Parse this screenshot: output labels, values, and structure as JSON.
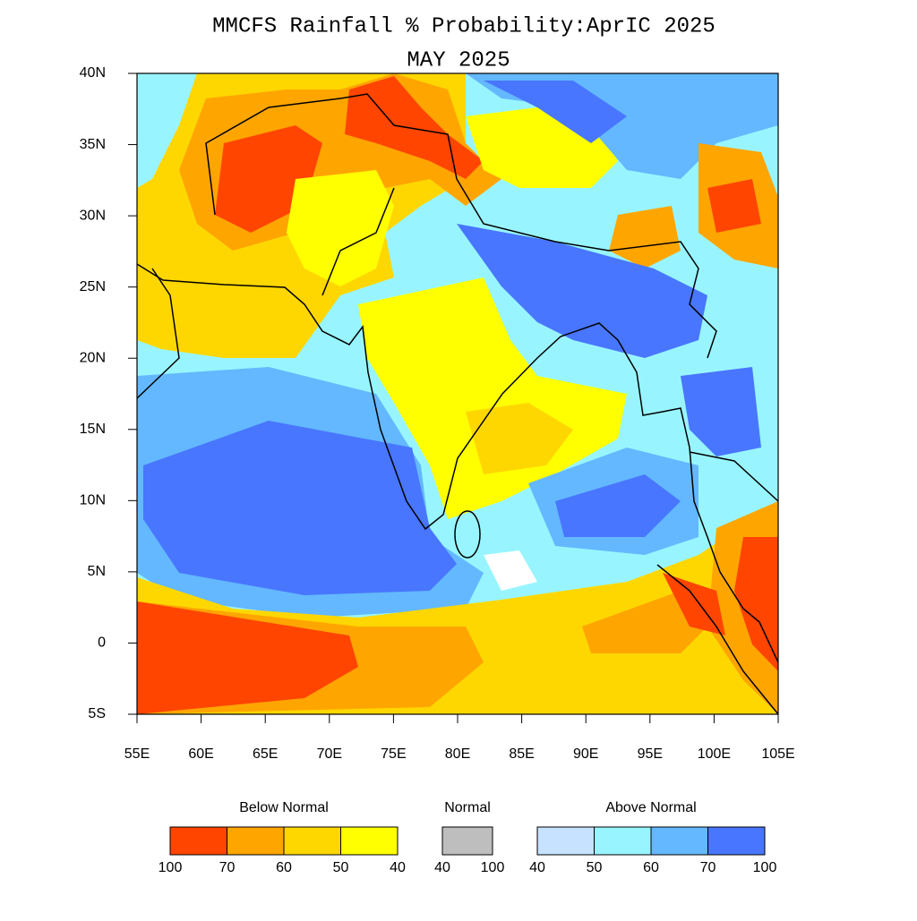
{
  "title": "MMCFS Rainfall % Probability:AprIC 2025",
  "subtitle": "MAY 2025",
  "map": {
    "lon_labels": [
      "55E",
      "60E",
      "65E",
      "70E",
      "75E",
      "80E",
      "85E",
      "90E",
      "95E",
      "100E",
      "105E"
    ],
    "lat_labels": [
      "40N",
      "35N",
      "30N",
      "25N",
      "20N",
      "15N",
      "10N",
      "5N",
      "0",
      "5S"
    ]
  },
  "legend": {
    "groups": [
      {
        "name": "Below Normal",
        "colors": [
          "#ff4500",
          "#ffa500",
          "#ffd700",
          "#ffff00"
        ],
        "labels": [
          "100",
          "70",
          "60",
          "50",
          "40"
        ]
      },
      {
        "name": "Normal",
        "colors": [
          "#bebebe"
        ],
        "labels": [
          "40",
          "100"
        ]
      },
      {
        "name": "Above Normal",
        "colors": [
          "#c6e2ff",
          "#98f5ff",
          "#63b8ff",
          "#4876ff"
        ],
        "labels": [
          "40",
          "50",
          "60",
          "70",
          "100"
        ]
      }
    ]
  }
}
